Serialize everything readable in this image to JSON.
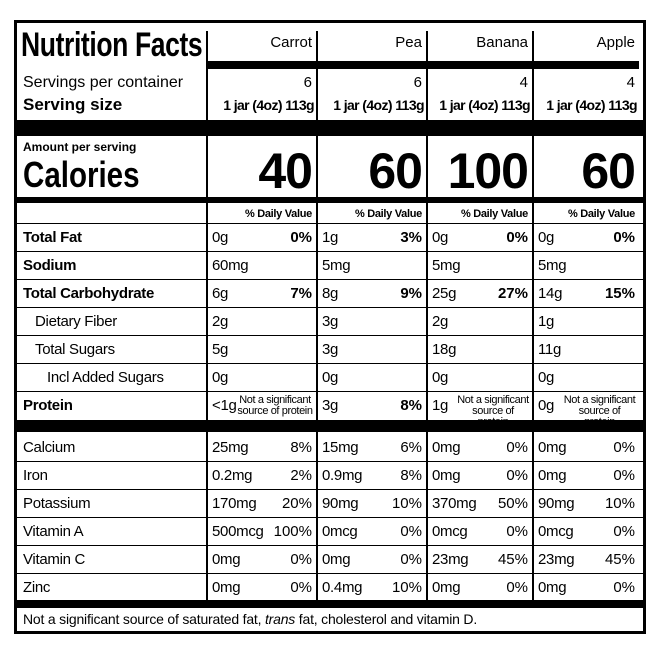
{
  "title": "Nutrition Facts",
  "columns": [
    "Carrot",
    "Pea",
    "Banana",
    "Apple"
  ],
  "servings_label": "Servings per container",
  "servings": [
    "6",
    "6",
    "4",
    "4"
  ],
  "serving_size_label": "Serving size",
  "serving_sizes": [
    "1 jar (4oz) 113g",
    "1 jar (4oz) 113g",
    "1 jar (4oz) 113g",
    "1 jar (4oz) 113g"
  ],
  "amount_label": "Amount per serving",
  "calories_label": "Calories",
  "calories": [
    "40",
    "60",
    "100",
    "60"
  ],
  "dv_header": "% Daily Value",
  "nutrients": [
    {
      "name": "Total Fat",
      "values": [
        {
          "amount": "0g",
          "dv": "0%"
        },
        {
          "amount": "1g",
          "dv": "3%"
        },
        {
          "amount": "0g",
          "dv": "0%"
        },
        {
          "amount": "0g",
          "dv": "0%"
        }
      ]
    },
    {
      "name": "Sodium",
      "values": [
        {
          "amount": "60mg"
        },
        {
          "amount": "5mg"
        },
        {
          "amount": "5mg"
        },
        {
          "amount": "5mg"
        }
      ]
    },
    {
      "name": "Total Carbohydrate",
      "values": [
        {
          "amount": "6g",
          "dv": "7%"
        },
        {
          "amount": "8g",
          "dv": "9%"
        },
        {
          "amount": "25g",
          "dv": "27%"
        },
        {
          "amount": "14g",
          "dv": "15%"
        }
      ]
    },
    {
      "name": "Dietary Fiber",
      "values": [
        {
          "amount": "2g"
        },
        {
          "amount": "3g"
        },
        {
          "amount": "2g"
        },
        {
          "amount": "1g"
        }
      ]
    },
    {
      "name": "Total Sugars",
      "values": [
        {
          "amount": "5g"
        },
        {
          "amount": "3g"
        },
        {
          "amount": "18g"
        },
        {
          "amount": "11g"
        }
      ]
    },
    {
      "name": "Incl Added Sugars",
      "values": [
        {
          "amount": "0g"
        },
        {
          "amount": "0g"
        },
        {
          "amount": "0g"
        },
        {
          "amount": "0g"
        }
      ]
    },
    {
      "name": "Protein",
      "values": [
        {
          "amount": "<1g",
          "note": "Not a significant source of protein"
        },
        {
          "amount": "3g",
          "dv": "8%"
        },
        {
          "amount": "1g",
          "note": "Not a significant source of protein"
        },
        {
          "amount": "0g",
          "note": "Not a significant source of protein"
        }
      ]
    }
  ],
  "minerals": [
    {
      "name": "Calcium",
      "values": [
        {
          "amount": "25mg",
          "dv": "8%"
        },
        {
          "amount": "15mg",
          "dv": "6%"
        },
        {
          "amount": "0mg",
          "dv": "0%"
        },
        {
          "amount": "0mg",
          "dv": "0%"
        }
      ]
    },
    {
      "name": "Iron",
      "values": [
        {
          "amount": "0.2mg",
          "dv": "2%"
        },
        {
          "amount": "0.9mg",
          "dv": "8%"
        },
        {
          "amount": "0mg",
          "dv": "0%"
        },
        {
          "amount": "0mg",
          "dv": "0%"
        }
      ]
    },
    {
      "name": "Potassium",
      "values": [
        {
          "amount": "170mg",
          "dv": "20%"
        },
        {
          "amount": "90mg",
          "dv": "10%"
        },
        {
          "amount": "370mg",
          "dv": "50%"
        },
        {
          "amount": "90mg",
          "dv": "10%"
        }
      ]
    },
    {
      "name": "Vitamin A",
      "values": [
        {
          "amount": "500mcg",
          "dv": "100%"
        },
        {
          "amount": "0mcg",
          "dv": "0%"
        },
        {
          "amount": "0mcg",
          "dv": "0%"
        },
        {
          "amount": "0mcg",
          "dv": "0%"
        }
      ]
    },
    {
      "name": "Vitamin C",
      "values": [
        {
          "amount": "0mg",
          "dv": "0%"
        },
        {
          "amount": "0mg",
          "dv": "0%"
        },
        {
          "amount": "23mg",
          "dv": "45%"
        },
        {
          "amount": "23mg",
          "dv": "45%"
        }
      ]
    },
    {
      "name": "Zinc",
      "values": [
        {
          "amount": "0mg",
          "dv": "0%"
        },
        {
          "amount": "0.4mg",
          "dv": "10%"
        },
        {
          "amount": "0mg",
          "dv": "0%"
        },
        {
          "amount": "0mg",
          "dv": "0%"
        }
      ]
    }
  ],
  "footnote": [
    "Not a significant source of saturated fat, ",
    "trans",
    " fat, cholesterol and vitamin D."
  ]
}
